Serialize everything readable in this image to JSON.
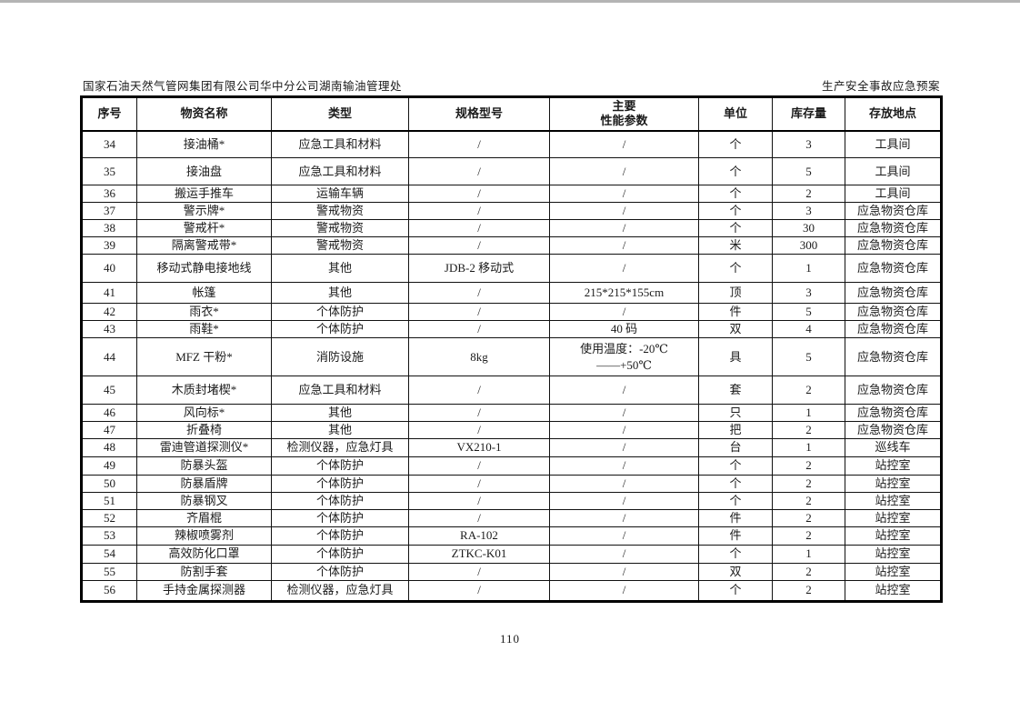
{
  "page_header": {
    "left": "国家石油天然气管网集团有限公司华中分公司湖南输油管理处",
    "right": "生产安全事故应急预案"
  },
  "table": {
    "headers": [
      "序号",
      "物资名称",
      "类型",
      "规格型号",
      "主要\n性能参数",
      "单位",
      "库存量",
      "存放地点"
    ],
    "rows": [
      [
        "34",
        "接油桶*",
        "应急工具和材料",
        "/",
        "/",
        "个",
        "3",
        "工具间"
      ],
      [
        "35",
        "接油盘",
        "应急工具和材料",
        "/",
        "/",
        "个",
        "5",
        "工具间"
      ],
      [
        "36",
        "搬运手推车",
        "运输车辆",
        "/",
        "/",
        "个",
        "2",
        "工具间"
      ],
      [
        "37",
        "警示牌*",
        "警戒物资",
        "/",
        "/",
        "个",
        "3",
        "应急物资仓库"
      ],
      [
        "38",
        "警戒杆*",
        "警戒物资",
        "/",
        "/",
        "个",
        "30",
        "应急物资仓库"
      ],
      [
        "39",
        "隔离警戒带*",
        "警戒物资",
        "/",
        "/",
        "米",
        "300",
        "应急物资仓库"
      ],
      [
        "40",
        "移动式静电接地线",
        "其他",
        "JDB-2 移动式",
        "/",
        "个",
        "1",
        "应急物资仓库"
      ],
      [
        "41",
        "帐篷",
        "其他",
        "/",
        "215*215*155cm",
        "顶",
        "3",
        "应急物资仓库"
      ],
      [
        "42",
        "雨衣*",
        "个体防护",
        "/",
        "/",
        "件",
        "5",
        "应急物资仓库"
      ],
      [
        "43",
        "雨鞋*",
        "个体防护",
        "/",
        "40 码",
        "双",
        "4",
        "应急物资仓库"
      ],
      [
        "44",
        "MFZ 干粉*",
        "消防设施",
        "8kg",
        "使用温度：-20℃\n——+50℃",
        "具",
        "5",
        "应急物资仓库"
      ],
      [
        "45",
        "木质封堵楔*",
        "应急工具和材料",
        "/",
        "/",
        "套",
        "2",
        "应急物资仓库"
      ],
      [
        "46",
        "风向标*",
        "其他",
        "/",
        "/",
        "只",
        "1",
        "应急物资仓库"
      ],
      [
        "47",
        "折叠椅",
        "其他",
        "/",
        "/",
        "把",
        "2",
        "应急物资仓库"
      ],
      [
        "48",
        "雷迪管道探测仪*",
        "检测仪器，应急灯具",
        "VX210-1",
        "/",
        "台",
        "1",
        "巡线车"
      ],
      [
        "49",
        "防暴头盔",
        "个体防护",
        "/",
        "/",
        "个",
        "2",
        "站控室"
      ],
      [
        "50",
        "防暴盾牌",
        "个体防护",
        "/",
        "/",
        "个",
        "2",
        "站控室"
      ],
      [
        "51",
        "防暴钢叉",
        "个体防护",
        "/",
        "/",
        "个",
        "2",
        "站控室"
      ],
      [
        "52",
        "齐眉棍",
        "个体防护",
        "/",
        "/",
        "件",
        "2",
        "站控室"
      ],
      [
        "53",
        "辣椒喷雾剂",
        "个体防护",
        "RA-102",
        "/",
        "件",
        "2",
        "站控室"
      ],
      [
        "54",
        "高效防化口罩",
        "个体防护",
        "ZTKC-K01",
        "/",
        "个",
        "1",
        "站控室"
      ],
      [
        "55",
        "防割手套",
        "个体防护",
        "/",
        "/",
        "双",
        "2",
        "站控室"
      ],
      [
        "56",
        "手持金属探测器",
        "检测仪器，应急灯具",
        "/",
        "/",
        "个",
        "2",
        "站控室"
      ]
    ]
  },
  "footer": {
    "page_number": "110"
  }
}
